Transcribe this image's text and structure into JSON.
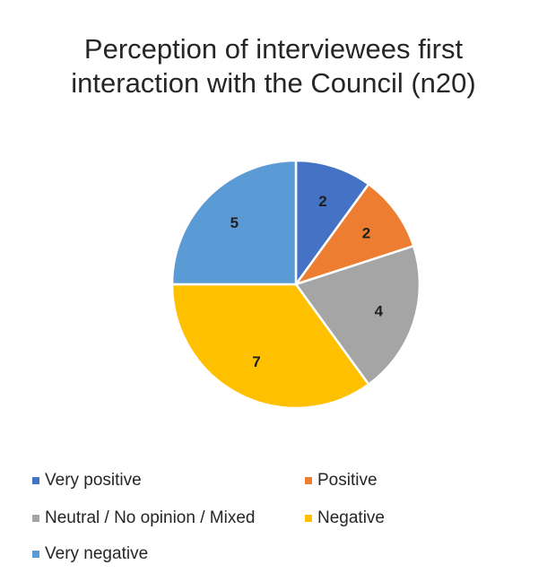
{
  "chart_data": {
    "type": "pie",
    "title_lines": [
      "Perception of interviewees first",
      "interaction with the Council (n20)"
    ],
    "categories": [
      "Very positive",
      "Positive",
      "Neutral / No opinion / Mixed",
      "Negative",
      "Very negative"
    ],
    "values": [
      2,
      2,
      4,
      7,
      5
    ],
    "data_labels": [
      "2",
      "2",
      "4",
      "7",
      "5"
    ],
    "colors": [
      "#4472C4",
      "#ED7D31",
      "#A5A5A5",
      "#FFC000",
      "#5B9BD5"
    ],
    "start_angle_deg": 0,
    "direction": "clockwise",
    "legend_position": "bottom"
  }
}
